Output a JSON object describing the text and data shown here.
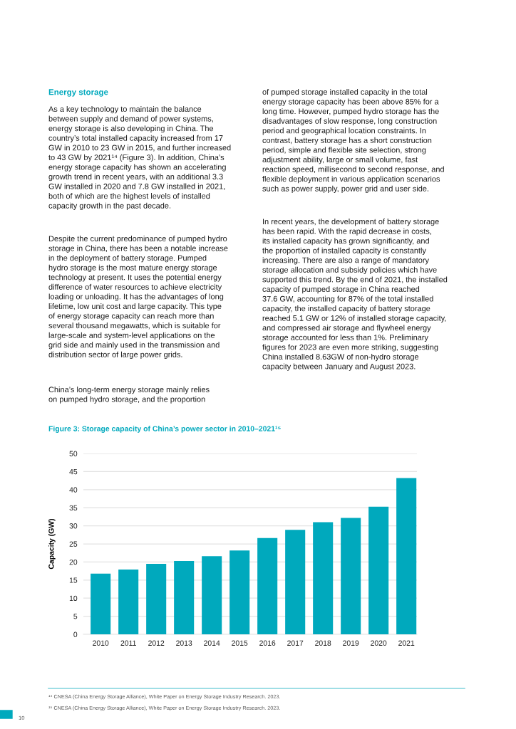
{
  "chart_data": {
    "type": "bar",
    "title": "Figure 3: Storage capacity of China’s power sector in 2010–2021¹⁵",
    "ylabel": "Capacity (GW)",
    "categories": [
      "2010",
      "2011",
      "2012",
      "2013",
      "2014",
      "2015",
      "2016",
      "2017",
      "2018",
      "2019",
      "2020",
      "2021"
    ],
    "values": [
      16.8,
      17.9,
      19.5,
      20.3,
      21.6,
      23.2,
      26.6,
      28.9,
      31.0,
      32.2,
      35.3,
      43.2
    ],
    "color": "#00a9bd",
    "ylim": [
      0,
      50
    ],
    "yticks": [
      0,
      5,
      10,
      15,
      20,
      25,
      30,
      35,
      40,
      45,
      50
    ],
    "grid": "y",
    "annotations": [
      "Energy storage",
      "As a key technology to maintain the balance\nbetween supply and demand of power systems,\nenergy storage is also developing in China. The\ncountry’s total installed capacity increased from 17\nGW in 2010 to 23 GW in 2015, and further increased\nto 43 GW by 2021¹⁴ (Figure 3). In addition, China’s\nenergy storage capacity has shown an accelerating\ngrowth trend in recent years, with an additional 3.3\nGW installed in 2020 and 7.8 GW installed in 2021,\nboth of which are the highest levels of installed\ncapacity growth in the past decade.",
      "Despite the current predominance of pumped hydro\nstorage in China, there has been a notable increase\nin the deployment of battery storage. Pumped\nhydro storage is the most mature energy storage\ntechnology at present. It uses the potential energy\ndifference of water resources to achieve electricity\nloading or unloading. It has the advantages of long\nlifetime, low unit cost and large capacity. This type\nof energy storage capacity can reach more than\nseveral thousand megawatts, which is suitable for\nlarge-scale and system-level applications on the\ngrid side and mainly used in the transmission and\ndistribution sector of large power grids.",
      "China’s long-term energy storage mainly relies\non pumped hydro storage, and the proportion",
      "of pumped storage installed capacity in the total\nenergy storage capacity has been above 85% for a\nlong time. However, pumped hydro storage has the\ndisadvantages of slow response, long construction\nperiod and geographical location constraints. In\ncontrast, battery storage has a short construction\nperiod, simple and flexible site selection, strong\nadjustment ability, large or small volume, fast\nreaction speed, millisecond to second response, and\nflexible deployment in various application scenarios\nsuch as power supply, power grid and user side.",
      "In recent years, the development of battery storage\nhas been rapid. With the rapid decrease in costs,\nits installed capacity has grown significantly, and\nthe proportion of installed capacity is constantly\nincreasing. There are also a range of mandatory\nstorage allocation and subsidy policies which have\nsupported this trend. By the end of 2021, the installed\ncapacity of pumped storage in China reached\n37.6 GW, accounting for 87% of the total installed\ncapacity, the installed capacity of battery storage\nreached 5.1 GW or 12% of installed storage capacity,\nand compressed air storage and flywheel energy\nstorage accounted for less than 1%. Preliminary\nfigures for 2023 are even more striking, suggesting\nChina installed 8.63GW of non-hydro storage\ncapacity between January and August 2023.",
      "¹⁴ CNESA (China Energy Storage Alliance), White Paper on Energy Storage Industry Research. 2023.",
      "¹⁵ CNESA (China Energy Storage Alliance), White Paper on Energy Storage Industry Research. 2023.",
      "10"
    ]
  }
}
